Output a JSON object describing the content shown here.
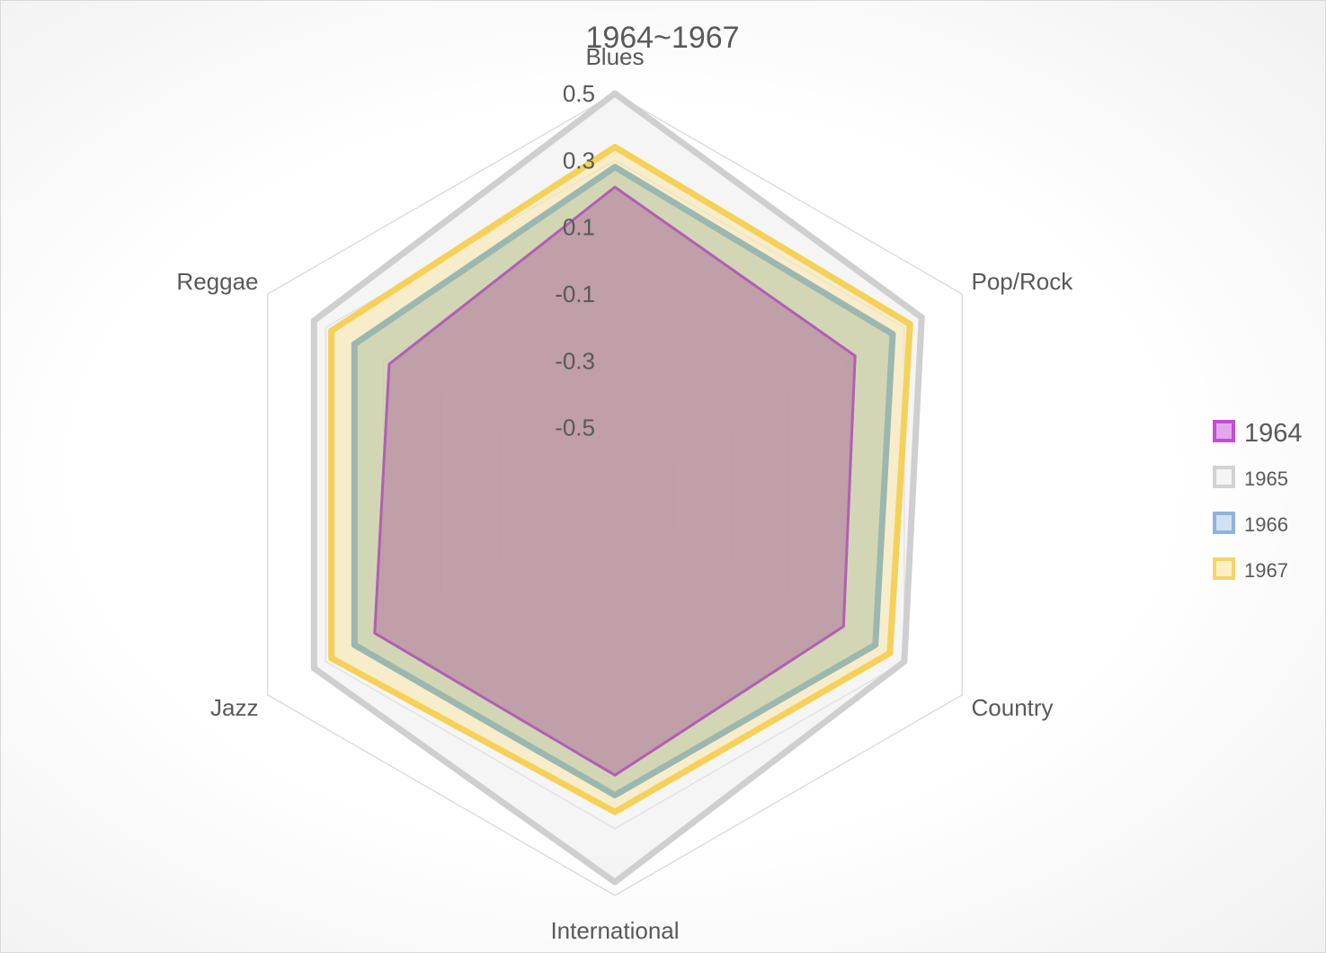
{
  "chart_data": {
    "type": "radar",
    "title": "1964~1967",
    "categories": [
      "Blues",
      "Pop/Rock",
      "Country",
      "International",
      "Jazz",
      "Reggae"
    ],
    "axis": {
      "min": -0.7,
      "max": 0.5,
      "major_unit": 0.2,
      "tick_labels": [
        "-0.5",
        "-0.3",
        "-0.1",
        "0.1",
        "0.3",
        "0.5"
      ]
    },
    "legend_position": "right",
    "series": [
      {
        "name": "1964",
        "values": [
          0.22,
          0.13,
          0.09,
          0.14,
          0.13,
          0.08
        ],
        "color": "#B05FB5",
        "fill": "#B47EA0"
      },
      {
        "name": "1965",
        "values": [
          0.5,
          0.36,
          0.3,
          0.46,
          0.34,
          0.34
        ],
        "color": "#CFCFCF",
        "fill": "#E8E8E8"
      },
      {
        "name": "1966",
        "values": [
          0.28,
          0.26,
          0.2,
          0.2,
          0.2,
          0.2
        ],
        "color": "#9BB7B0",
        "fill": "#B9C6A6"
      },
      {
        "name": "1967",
        "values": [
          0.34,
          0.32,
          0.25,
          0.25,
          0.28,
          0.28
        ],
        "color": "#F5D15A",
        "fill": "#F7E6A8"
      }
    ]
  },
  "legend": {
    "items": [
      {
        "label": "1964",
        "color": "#C24FD0",
        "fill": "#E3A6EC"
      },
      {
        "label": "1965",
        "color": "#D2D2D2",
        "fill": "#F4F4F4"
      },
      {
        "label": "1966",
        "color": "#8FB4D9",
        "fill": "#D0E1F2"
      },
      {
        "label": "1967",
        "color": "#F7D46A",
        "fill": "#FCEFC4"
      }
    ]
  }
}
